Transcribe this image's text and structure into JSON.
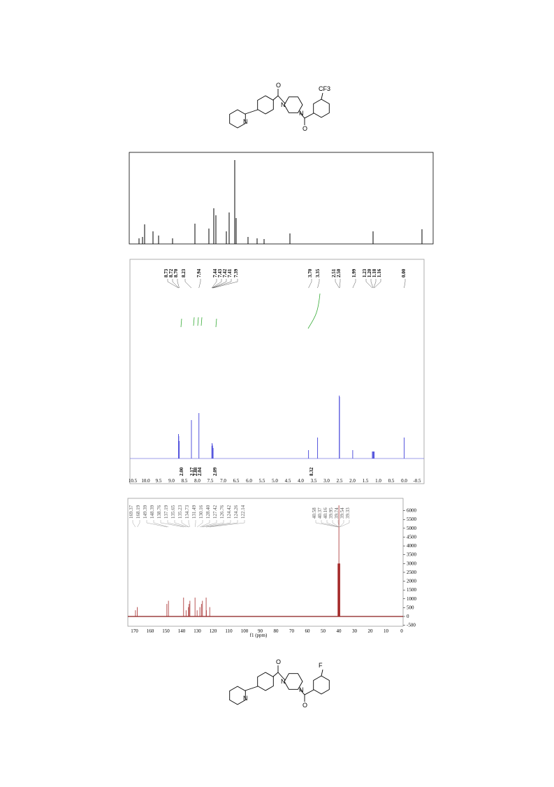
{
  "structure_1": {
    "atoms": [
      "O",
      "N",
      "N",
      "O",
      "N",
      "CF3"
    ]
  },
  "h_nmr": {
    "peak_labels": [
      "8.73",
      "8.72",
      "8.70",
      "8.23",
      "7.94",
      "7.44",
      "7.43",
      "7.42",
      "7.41",
      "7.39",
      "3.70",
      "3.35",
      "2.51",
      "2.50",
      "1.99",
      "1.23",
      "1.20",
      "1.18",
      "1.16",
      "0.00"
    ],
    "integrals": [
      "2.00",
      "2.17",
      "2.88",
      "2.04",
      "2.09",
      "8.32"
    ],
    "x_ticks": [
      "10.5",
      "10.0",
      "9.5",
      "9.0",
      "8.5",
      "8.0",
      "7.5",
      "7.0",
      "6.5",
      "6.0",
      "5.5",
      "5.0",
      "4.5",
      "4.0",
      "3.5",
      "3.0",
      "2.5",
      "2.0",
      "1.5",
      "1.0",
      "0.5",
      "0.0",
      "-0.5"
    ]
  },
  "c_nmr": {
    "peak_labels": [
      "169.37",
      "168.19",
      "149.39",
      "148.39",
      "138.76",
      "137.19",
      "135.65",
      "135.23",
      "134.73",
      "131.49",
      "130.16",
      "128.40",
      "127.42",
      "126.76",
      "124.42",
      "124.26",
      "122.14",
      "40.58",
      "40.37",
      "40.16",
      "39.95",
      "39.74",
      "39.54",
      "39.33"
    ],
    "x_ticks": [
      170,
      160,
      150,
      140,
      130,
      120,
      110,
      100,
      90,
      80,
      70,
      60,
      50,
      40,
      30,
      20,
      10,
      0
    ],
    "x_label": "f1 (ppm)",
    "y_ticks": [
      6000,
      5500,
      5000,
      4500,
      4000,
      3500,
      3000,
      2500,
      2000,
      1500,
      1000,
      500,
      0,
      -500
    ]
  },
  "structure_2": {
    "atoms": [
      "O",
      "N",
      "N",
      "O",
      "N",
      "F"
    ]
  }
}
